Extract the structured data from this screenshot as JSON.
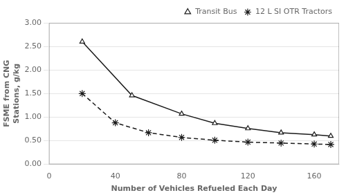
{
  "chart_data": {
    "type": "line",
    "xlabel": "Number of Vehicles Refueled Each Day",
    "ylabel": "FSME from CNG\nStations, g/kg",
    "series": [
      {
        "name": "Transit Bus",
        "color": "#1a1a1a",
        "marker": "triangle",
        "line_style": "solid",
        "x": [
          20,
          50,
          80,
          100,
          120,
          140,
          160,
          170
        ],
        "values": [
          2.6,
          1.46,
          1.07,
          0.87,
          0.76,
          0.67,
          0.63,
          0.6
        ]
      },
      {
        "name": "12 L SI OTR Tractors",
        "color": "#1a1a1a",
        "marker": "asterisk",
        "line_style": "dashed",
        "x": [
          20,
          40,
          60,
          80,
          100,
          120,
          140,
          160,
          170
        ],
        "values": [
          1.5,
          0.88,
          0.67,
          0.57,
          0.51,
          0.47,
          0.45,
          0.43,
          0.42
        ]
      }
    ],
    "xlim": [
      0,
      175
    ],
    "ylim": [
      0,
      3
    ],
    "xticks": [
      0,
      40,
      80,
      120,
      160
    ],
    "yticks": [
      {
        "value": 0,
        "label": "0.00"
      },
      {
        "value": 0.5,
        "label": "0.50"
      },
      {
        "value": 1,
        "label": "1.00"
      },
      {
        "value": 1.5,
        "label": "1.50"
      },
      {
        "value": 2,
        "label": "2.00"
      },
      {
        "value": 2.5,
        "label": "2.50"
      },
      {
        "value": 3,
        "label": "3.00"
      }
    ],
    "grid": "y",
    "legend": "upper right"
  }
}
